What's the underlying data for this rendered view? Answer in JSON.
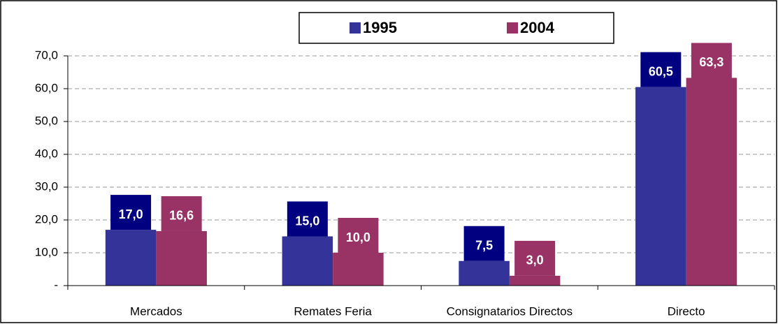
{
  "chart_data": {
    "type": "bar",
    "categories": [
      "Mercados",
      "Remates Feria",
      "Consignatarios Directos",
      "Directo"
    ],
    "series": [
      {
        "name": "1995",
        "color": "#333399",
        "label_color": "#000080",
        "values": [
          17.0,
          15.0,
          7.5,
          60.5
        ],
        "value_labels": [
          "17,0",
          "15,0",
          "7,5",
          "60,5"
        ]
      },
      {
        "name": "2004",
        "color": "#993366",
        "label_color": "#993366",
        "values": [
          16.6,
          10.0,
          3.0,
          63.3
        ],
        "value_labels": [
          "16,6",
          "10,0",
          "3,0",
          "63,3"
        ]
      }
    ],
    "ylim": [
      0,
      70
    ],
    "yticks": [
      {
        "value": 0,
        "label": "-"
      },
      {
        "value": 10,
        "label": "10,0"
      },
      {
        "value": 20,
        "label": "20,0"
      },
      {
        "value": 30,
        "label": "30,0"
      },
      {
        "value": 40,
        "label": "40,0"
      },
      {
        "value": 50,
        "label": "50,0"
      },
      {
        "value": 60,
        "label": "60,0"
      },
      {
        "value": 70,
        "label": "70,0"
      }
    ],
    "grid": true,
    "legend": "top"
  }
}
